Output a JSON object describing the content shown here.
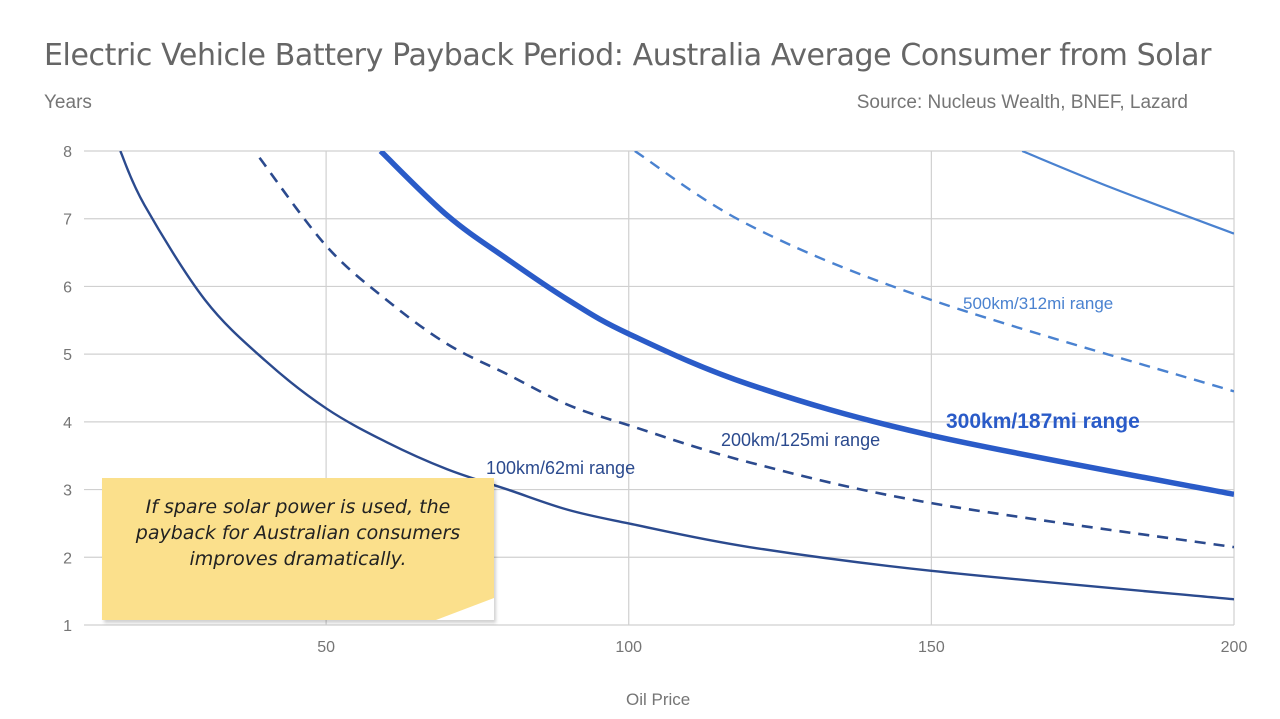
{
  "title": "Electric Vehicle Battery Payback Period: Australia Average Consumer from Solar",
  "source": "Source: Nucleus Wealth, BNEF, Lazard",
  "note": "If spare solar power is used, the payback for Australian consumers improves dramatically.",
  "colors": {
    "series_100": "#2b4a8e",
    "series_200": "#2b4a8e",
    "series_300": "#2a5bc8",
    "series_500": "#4a82d0",
    "grid": "#d0d0d0",
    "note": "#fbe08c"
  },
  "chart_data": {
    "type": "line",
    "xlabel": "Oil Price",
    "ylabel": "Years",
    "xlim": [
      10,
      200
    ],
    "ylim": [
      1,
      8
    ],
    "xticks": [
      50,
      100,
      150,
      200
    ],
    "yticks": [
      1,
      2,
      3,
      4,
      5,
      6,
      7,
      8
    ],
    "grid": true,
    "series": [
      {
        "name": "100km/62mi range",
        "style": "solid",
        "x": [
          16,
          20,
          30,
          40,
          50,
          60,
          70,
          80,
          90,
          100,
          120,
          150,
          200
        ],
        "y": [
          8.0,
          7.2,
          5.8,
          4.9,
          4.2,
          3.7,
          3.3,
          3.0,
          2.7,
          2.5,
          2.15,
          1.8,
          1.38
        ]
      },
      {
        "name": "200km/125mi range",
        "style": "dashed",
        "x": [
          39,
          50,
          60,
          70,
          80,
          90,
          100,
          120,
          150,
          200
        ],
        "y": [
          7.9,
          6.6,
          5.8,
          5.15,
          4.7,
          4.25,
          3.95,
          3.4,
          2.8,
          2.15
        ]
      },
      {
        "name": "300km/187mi range",
        "style": "bold",
        "x": [
          59,
          70,
          80,
          90,
          100,
          120,
          150,
          200
        ],
        "y": [
          8.0,
          7.05,
          6.4,
          5.8,
          5.3,
          4.55,
          3.8,
          2.93
        ]
      },
      {
        "name": "500km/312mi range",
        "style": "dashed-light",
        "x": [
          101,
          120,
          150,
          200
        ],
        "y": [
          8.0,
          6.9,
          5.8,
          4.45
        ]
      },
      {
        "name": "",
        "style": "solid-light",
        "x": [
          165,
          180,
          200
        ],
        "y": [
          8.0,
          7.45,
          6.78
        ]
      }
    ],
    "annotations": [
      {
        "text": "100km/62mi range",
        "series": 0
      },
      {
        "text": "200km/125mi range",
        "series": 1
      },
      {
        "text": "300km/187mi range",
        "series": 2
      },
      {
        "text": "500km/312mi range",
        "series": 3
      }
    ]
  }
}
